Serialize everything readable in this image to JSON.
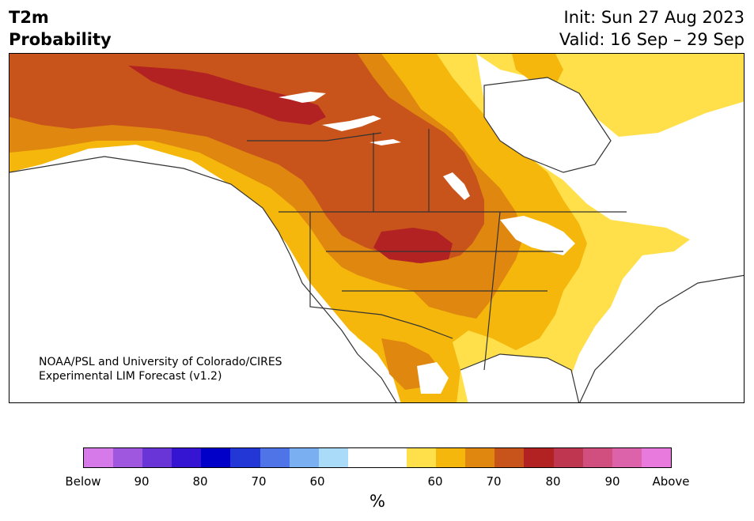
{
  "title": {
    "line1": "T2m",
    "line2": "Probability"
  },
  "init": {
    "label": "Init: Sun 27 Aug 2023",
    "valid": "Valid: 16 Sep – 29 Sep"
  },
  "credit": {
    "line1": "NOAA/PSL and University of Colorado/CIRES",
    "line2": "Experimental LIM Forecast (v1.2)"
  },
  "colors": {
    "land_outline": "#333333",
    "below": [
      "#d57ae8",
      "#9f57e0",
      "#6a35d6",
      "#3515d1",
      "#0000c8",
      "#2336d6",
      "#4e74e8",
      "#7aaff2",
      "#aadbf9"
    ],
    "neutral": "#ffffff",
    "above": [
      "#ffe04b",
      "#f5b70b",
      "#e0870f",
      "#c8541b",
      "#b22222",
      "#bf3650",
      "#d04f7e",
      "#dc62aa",
      "#e879dd"
    ],
    "map_fill": {
      "p50": "#ffe04b",
      "p60": "#f5b70b",
      "p70": "#e0870f",
      "p75": "#c8541b",
      "p80": "#b22222"
    }
  },
  "colorbar": {
    "labels": [
      "Below",
      "90",
      "80",
      "70",
      "60",
      "60",
      "70",
      "80",
      "90",
      "Above"
    ],
    "units": "%"
  },
  "map": {
    "projection": "North America",
    "categories": "Probability of above/below normal 2-m temperature"
  }
}
